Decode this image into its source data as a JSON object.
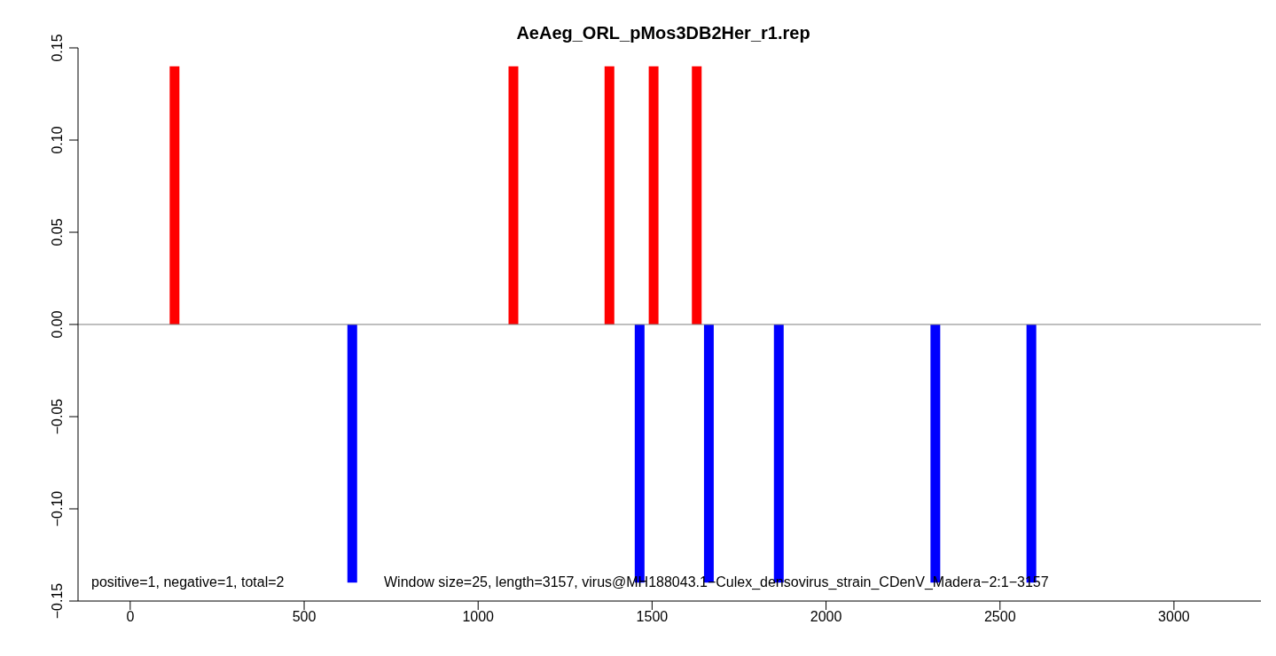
{
  "chart_data": {
    "type": "bar",
    "title": "AeAeg_ORL_pMos3DB2Her_r1.rep",
    "series": [
      {
        "color": "#ff0000",
        "x": [
          134,
          1108,
          1384,
          1511,
          1635
        ],
        "values": [
          0.14,
          0.14,
          0.14,
          0.14,
          0.14
        ]
      },
      {
        "color": "#0000ff",
        "x": [
          634,
          1460,
          1659,
          1860,
          2310,
          2586
        ],
        "values": [
          -0.14,
          -0.14,
          -0.14,
          -0.14,
          -0.14,
          -0.14
        ]
      }
    ],
    "xlim": [
      -150,
      3250
    ],
    "xticks": [
      0,
      500,
      1000,
      1500,
      2000,
      2500,
      3000
    ],
    "ylim": [
      -0.15,
      0.15
    ],
    "yticks": [
      {
        "value": -0.15,
        "label": "−0.15"
      },
      {
        "value": -0.1,
        "label": "−0.10"
      },
      {
        "value": -0.05,
        "label": "−0.05"
      },
      {
        "value": 0,
        "label": "0.00"
      },
      0.05,
      {
        "value": 0.1,
        "label": "0.10"
      },
      0.15
    ],
    "ref_lines": [
      {
        "axis": "y",
        "value": 0,
        "color": "#808080"
      }
    ],
    "annotations": [
      "positive=1, negative=1, total=2",
      "Window size=25, length=3157, virus@MH188043.1−Culex_densovirus_strain_CDenV_Madera−2:1−3157"
    ],
    "grid": false,
    "legend": false
  }
}
